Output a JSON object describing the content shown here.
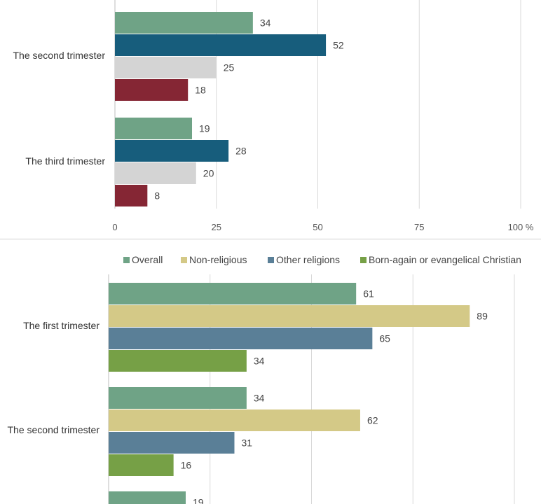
{
  "chart_data": [
    {
      "type": "bar",
      "orientation": "horizontal",
      "categories": [
        "The second trimester",
        "The third trimester"
      ],
      "series": [
        {
          "values": [
            34,
            19
          ],
          "color": "#6fa386"
        },
        {
          "values": [
            52,
            28
          ],
          "color": "#175d7c"
        },
        {
          "values": [
            25,
            20
          ],
          "color": "#d4d4d4"
        },
        {
          "values": [
            18,
            8
          ],
          "color": "#852634"
        }
      ],
      "xlim": [
        0,
        100
      ],
      "xticks": [
        "0",
        "25",
        "50",
        "75",
        "100 %"
      ],
      "grid": true,
      "legend": "none"
    },
    {
      "type": "bar",
      "orientation": "horizontal",
      "categories": [
        "The first trimester",
        "The second trimester",
        ""
      ],
      "series": [
        {
          "name": "Overall",
          "values": [
            61,
            34,
            19
          ],
          "color": "#6fa386"
        },
        {
          "name": "Non-religious",
          "values": [
            89,
            62,
            null
          ],
          "color": "#d4c987"
        },
        {
          "name": "Other religions",
          "values": [
            65,
            31,
            null
          ],
          "color": "#5a7f97"
        },
        {
          "name": "Born-again or evangelical Christian",
          "values": [
            34,
            16,
            null
          ],
          "color": "#76a046"
        }
      ],
      "xlim": [
        0,
        100
      ],
      "grid": true,
      "legend": "top"
    }
  ]
}
